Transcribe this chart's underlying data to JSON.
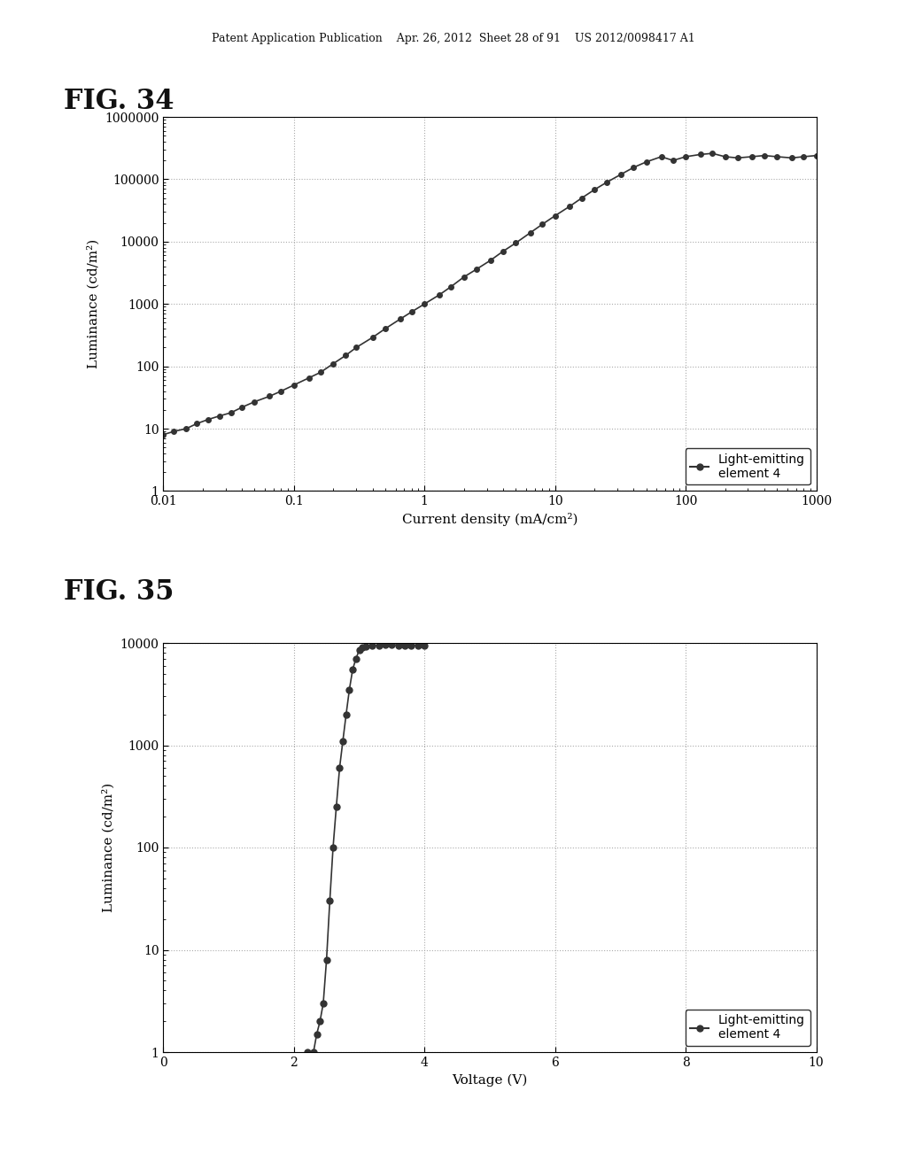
{
  "page_header": "Patent Application Publication    Apr. 26, 2012  Sheet 28 of 91    US 2012/0098417 A1",
  "fig34_label": "FIG. 34",
  "fig35_label": "FIG. 35",
  "fig34_xlabel": "Current density (mA/cm²)",
  "fig34_ylabel": "Luminance (cd/m²)",
  "fig35_xlabel": "Voltage (V)",
  "fig35_ylabel": "Luminance (cd/m²)",
  "legend_label": "Light-emitting\nelement 4",
  "marker_color": "#333333",
  "line_color": "#333333",
  "fig34_xlim": [
    0.01,
    1000
  ],
  "fig34_ylim": [
    1,
    1000000
  ],
  "fig35_xlim": [
    0,
    10
  ],
  "fig35_ylim": [
    1,
    10000
  ],
  "fig34_xticks": [
    0.01,
    0.1,
    1,
    10,
    100,
    1000
  ],
  "fig34_yticks": [
    1,
    10,
    100,
    1000,
    10000,
    100000,
    1000000
  ],
  "fig35_xticks": [
    0,
    2,
    4,
    6,
    8,
    10
  ],
  "fig35_yticks": [
    1,
    10,
    100,
    1000,
    10000
  ],
  "fig34_data_x": [
    0.01,
    0.012,
    0.015,
    0.018,
    0.022,
    0.027,
    0.033,
    0.04,
    0.05,
    0.065,
    0.08,
    0.1,
    0.13,
    0.16,
    0.2,
    0.25,
    0.3,
    0.4,
    0.5,
    0.65,
    0.8,
    1.0,
    1.3,
    1.6,
    2.0,
    2.5,
    3.2,
    4.0,
    5.0,
    6.5,
    8.0,
    10,
    13,
    16,
    20,
    25,
    32,
    40,
    50,
    65,
    80,
    100,
    130,
    160,
    200,
    250,
    320,
    400,
    500,
    650,
    800,
    1000
  ],
  "fig34_data_y": [
    8,
    9,
    10,
    12,
    14,
    16,
    18,
    22,
    27,
    33,
    40,
    50,
    65,
    80,
    110,
    150,
    200,
    290,
    400,
    570,
    750,
    1000,
    1400,
    1900,
    2700,
    3600,
    5000,
    7000,
    9500,
    14000,
    19000,
    26000,
    37000,
    50000,
    68000,
    90000,
    120000,
    155000,
    190000,
    230000,
    200000,
    230000,
    250000,
    260000,
    230000,
    220000,
    230000,
    240000,
    230000,
    220000,
    230000,
    240000
  ],
  "fig35_data_x": [
    2.2,
    2.3,
    2.35,
    2.4,
    2.45,
    2.5,
    2.55,
    2.6,
    2.65,
    2.7,
    2.75,
    2.8,
    2.85,
    2.9,
    2.95,
    3.0,
    3.05,
    3.1,
    3.2,
    3.3,
    3.4,
    3.5,
    3.6,
    3.7,
    3.8,
    3.9,
    4.0
  ],
  "fig35_data_y": [
    1,
    1,
    1.5,
    2,
    3,
    8,
    30,
    100,
    250,
    600,
    1100,
    2000,
    3500,
    5500,
    7000,
    8500,
    9000,
    9200,
    9400,
    9500,
    9600,
    9600,
    9500,
    9500,
    9500,
    9500,
    9500
  ],
  "background_color": "#ffffff",
  "grid_color": "#aaaaaa",
  "grid_style": "dotted"
}
